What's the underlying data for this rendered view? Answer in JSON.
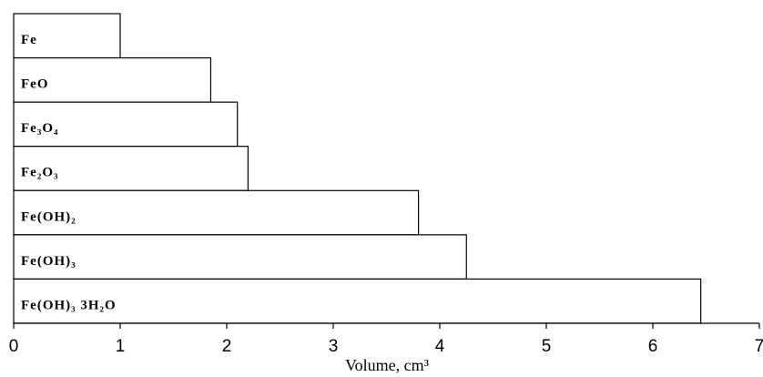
{
  "chart_data": {
    "type": "barh",
    "categories": [
      "Fe",
      "FeO",
      "Fe₃O₄",
      "Fe₂O₃",
      "Fe(OH)₂",
      "Fe(OH)₃",
      "Fe(OH)₃ 3H₂O"
    ],
    "values": [
      1.0,
      1.85,
      2.1,
      2.2,
      3.8,
      4.25,
      6.45
    ],
    "color": "#ffffff",
    "x_label": "Volume, cm³",
    "xlim": [
      0,
      7
    ],
    "xticks": [
      0,
      1,
      2,
      3,
      4,
      5,
      6,
      7
    ]
  }
}
